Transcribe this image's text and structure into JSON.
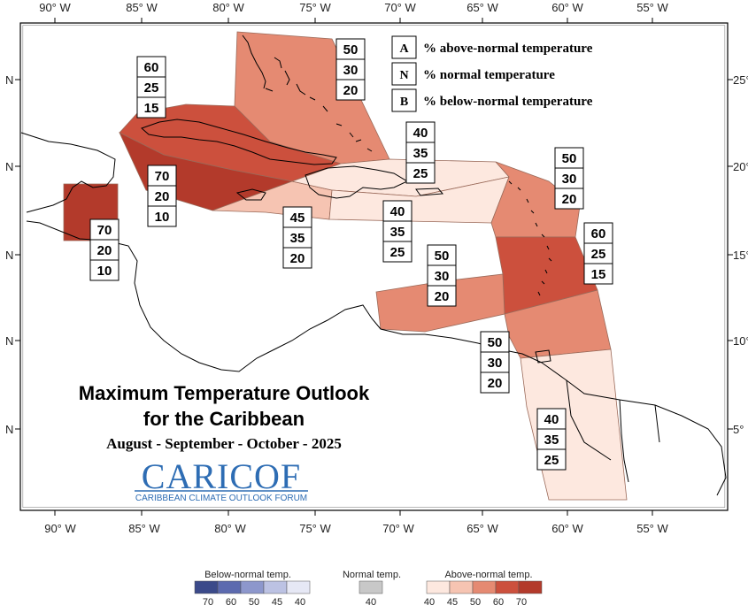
{
  "map": {
    "title_line1": "Maximum Temperature Outlook",
    "title_line2": "for the Caribbean",
    "period": "August - September - October - 2025",
    "logo_main": "CARICOF",
    "logo_sub": "CARIBBEAN CLIMATE OUTLOOK FORUM",
    "lon_ticks": [
      "90° W",
      "85° W",
      "80° W",
      "75° W",
      "70° W",
      "65° W",
      "60° W",
      "55° W"
    ],
    "lat_ticks_left": [
      "N",
      "N",
      "N",
      "N",
      "N"
    ],
    "lat_ticks_right": [
      "25°",
      "20°",
      "15°",
      "10°",
      "5°"
    ]
  },
  "key": [
    {
      "letter": "A",
      "text": "% above-normal temperature"
    },
    {
      "letter": "N",
      "text": "% normal temperature"
    },
    {
      "letter": "B",
      "text": "% below-normal temperature"
    }
  ],
  "regions": [
    {
      "name": "bahamas",
      "A": "50",
      "N": "30",
      "B": "20",
      "color": "#e58a72"
    },
    {
      "name": "cuba",
      "A": "60",
      "N": "25",
      "B": "15",
      "color": "#cc503d"
    },
    {
      "name": "cayman-jamaica",
      "A": "70",
      "N": "20",
      "B": "10",
      "color": "#b33a2b"
    },
    {
      "name": "belize",
      "A": "70",
      "N": "20",
      "B": "10",
      "color": "#b33a2b"
    },
    {
      "name": "haiti",
      "A": "45",
      "N": "35",
      "B": "20",
      "color": "#f6c4b2"
    },
    {
      "name": "hispaniola-north",
      "A": "40",
      "N": "35",
      "B": "25",
      "color": "#fde8df"
    },
    {
      "name": "hispaniola-puerto-rico",
      "A": "40",
      "N": "35",
      "B": "25",
      "color": "#fde8df"
    },
    {
      "name": "leeward-islands",
      "A": "50",
      "N": "30",
      "B": "20",
      "color": "#e58a72"
    },
    {
      "name": "windward-islands",
      "A": "60",
      "N": "25",
      "B": "15",
      "color": "#cc503d"
    },
    {
      "name": "abc-islands",
      "A": "50",
      "N": "30",
      "B": "20",
      "color": "#e58a72"
    },
    {
      "name": "trinidad-tobago",
      "A": "50",
      "N": "30",
      "B": "20",
      "color": "#e58a72"
    },
    {
      "name": "guianas",
      "A": "40",
      "N": "35",
      "B": "25",
      "color": "#fde8df"
    }
  ],
  "legend": {
    "below_title": "Below-normal temp.",
    "normal_title": "Normal temp.",
    "above_title": "Above-normal temp.",
    "below_colors": [
      "#3b4a8a",
      "#5c6aaf",
      "#8d97cc",
      "#bcc2e3",
      "#e6e8f5"
    ],
    "below_labels": [
      "70",
      "60",
      "50",
      "45",
      "40"
    ],
    "normal_color": "#c8c8c8",
    "normal_label": "40",
    "above_colors": [
      "#fde8df",
      "#f6c4b2",
      "#e58a72",
      "#cc503d",
      "#b33a2b"
    ],
    "above_labels": [
      "40",
      "45",
      "50",
      "60",
      "70"
    ]
  }
}
